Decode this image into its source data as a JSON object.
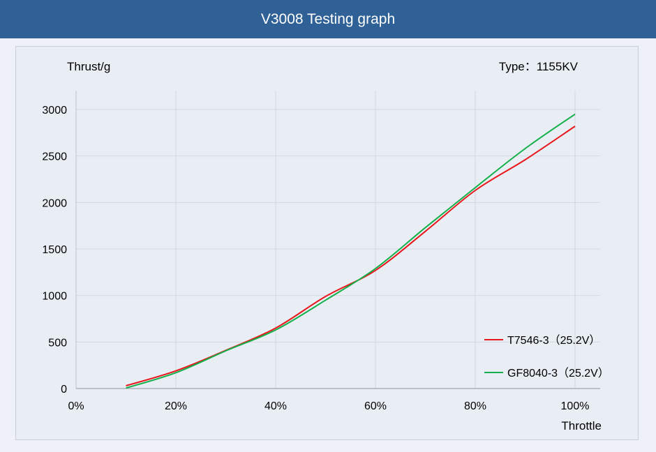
{
  "header": {
    "title": "V3008 Testing graph"
  },
  "chart_data": {
    "type": "line",
    "title": "",
    "ylabel": "Thrust/g",
    "xlabel": "Throttle",
    "annotation": "Type：1155KV",
    "xlim": [
      0,
      100
    ],
    "ylim": [
      0,
      3000
    ],
    "x_ticks": [
      0,
      20,
      40,
      60,
      80,
      100
    ],
    "x_tick_labels": [
      "0%",
      "20%",
      "40%",
      "60%",
      "80%",
      "100%"
    ],
    "y_ticks": [
      0,
      500,
      1000,
      1500,
      2000,
      2500,
      3000
    ],
    "y_tick_labels": [
      "0",
      "500",
      "1000",
      "1500",
      "2000",
      "2500",
      "3000"
    ],
    "grid": true,
    "legend_position": "bottom-right",
    "series": [
      {
        "name": "T7546-3（25.2V）",
        "color": "#e8161b",
        "x": [
          10,
          20,
          30,
          40,
          50,
          60,
          70,
          80,
          90,
          100
        ],
        "y": [
          30,
          190,
          410,
          650,
          990,
          1270,
          1690,
          2130,
          2460,
          2820
        ]
      },
      {
        "name": "GF8040-3（25.2V）",
        "color": "#12b04a",
        "x": [
          10,
          20,
          30,
          40,
          50,
          60,
          70,
          80,
          90,
          100
        ],
        "y": [
          5,
          170,
          405,
          630,
          950,
          1290,
          1730,
          2160,
          2580,
          2950
        ]
      }
    ]
  }
}
